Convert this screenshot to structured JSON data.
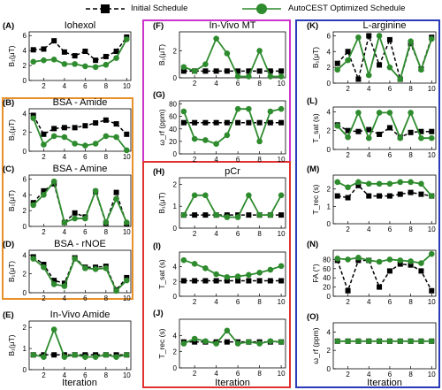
{
  "legend": {
    "initial_label": "Initial Schedule",
    "optimized_label": "AutoCEST Optimized Schedule"
  },
  "colors": {
    "initial": "#000000",
    "optimized": "#2e8b2e",
    "box_orange": "#e8902a",
    "box_magenta": "#cc33cc",
    "box_red": "#e03030",
    "box_blue": "#2a3ab8"
  },
  "x_axis_label": "Iteration",
  "x_ticks": [
    2,
    4,
    6,
    8,
    10
  ],
  "chart_data": [
    {
      "id": "A",
      "letter": "(A)",
      "title": "Iohexol",
      "ylabel": "B₁(μT)",
      "ylim": [
        0,
        6.5
      ],
      "yticks": [
        0,
        2,
        4,
        6
      ],
      "x": [
        1,
        2,
        3,
        4,
        5,
        6,
        7,
        8,
        9,
        10
      ],
      "initial": [
        4.1,
        4.2,
        5.3,
        3.8,
        3.3,
        3.9,
        2.7,
        3.2,
        3.9,
        5.8
      ],
      "optimized": [
        2.5,
        2.7,
        2.8,
        2.2,
        2.2,
        1.9,
        1.8,
        2.1,
        3.0,
        5.5
      ]
    },
    {
      "id": "B",
      "letter": "(B)",
      "title": "BSA - Amide",
      "ylabel": "B₁(μT)",
      "ylim": [
        0,
        4.5
      ],
      "yticks": [
        0,
        2,
        4
      ],
      "x": [
        1,
        2,
        3,
        4,
        5,
        6,
        7,
        8,
        9,
        10
      ],
      "initial": [
        3.8,
        1.8,
        2.4,
        2.5,
        2.5,
        2.7,
        3.0,
        3.3,
        2.9,
        1.8
      ],
      "optimized": [
        3.5,
        0.7,
        1.6,
        1.5,
        0.8,
        0.6,
        0.8,
        1.6,
        1.5,
        0.1
      ]
    },
    {
      "id": "C",
      "letter": "(C)",
      "title": "BSA - Amine",
      "ylabel": "B₁(μT)",
      "ylim": [
        0,
        6.5
      ],
      "yticks": [
        0,
        2,
        4,
        6
      ],
      "x": [
        1,
        2,
        3,
        4,
        5,
        6,
        7,
        8,
        9,
        10
      ],
      "initial": [
        3.0,
        4.5,
        5.4,
        0.5,
        1.7,
        1.2,
        4.4,
        0.4,
        4.3,
        0.3
      ],
      "optimized": [
        2.7,
        4.0,
        5.7,
        0.5,
        1.0,
        1.0,
        4.5,
        0.5,
        3.5,
        0.5
      ]
    },
    {
      "id": "D",
      "letter": "(D)",
      "title": "BSA - rNOE",
      "ylabel": "B₁(μT)",
      "ylim": [
        0,
        4.5
      ],
      "yticks": [
        0,
        2,
        4
      ],
      "x": [
        1,
        2,
        3,
        4,
        5,
        6,
        7,
        8,
        9,
        10
      ],
      "initial": [
        3.8,
        3.0,
        1.3,
        1.0,
        3.7,
        2.7,
        2.7,
        2.8,
        0.3,
        1.6
      ],
      "optimized": [
        3.6,
        2.7,
        0.9,
        0.7,
        3.6,
        2.6,
        2.5,
        2.6,
        0.2,
        1.3
      ]
    },
    {
      "id": "E",
      "letter": "(E)",
      "title": "In-Vivo Amide",
      "ylabel": "B₁(μT)",
      "ylim": [
        0,
        2.3
      ],
      "yticks": [
        0,
        1,
        2
      ],
      "x": [
        1,
        2,
        3,
        4,
        5,
        6,
        7,
        8,
        9,
        10
      ],
      "initial": [
        0.7,
        0.7,
        0.7,
        0.7,
        0.7,
        0.7,
        0.7,
        0.7,
        0.7,
        0.7
      ],
      "optimized": [
        0.7,
        0.6,
        1.9,
        0.6,
        0.7,
        0.6,
        0.6,
        0.7,
        0.6,
        0.7
      ]
    },
    {
      "id": "F",
      "letter": "(F)",
      "title": "In-Vivo MT",
      "ylabel": "B₁(μT)",
      "ylim": [
        0,
        3.4
      ],
      "yticks": [
        0,
        2
      ],
      "x": [
        1,
        2,
        3,
        4,
        5,
        6,
        7,
        8,
        9,
        10
      ],
      "initial": [
        0.5,
        0.5,
        0.5,
        0.5,
        0.5,
        0.5,
        0.5,
        0.5,
        0.5,
        0.5
      ],
      "optimized": [
        0.8,
        0.5,
        1.0,
        2.9,
        1.8,
        0.1,
        0.1,
        2.0,
        0.1,
        0.1
      ]
    },
    {
      "id": "G",
      "letter": "(G)",
      "title": "",
      "ylabel": "ω_rf (ppm)",
      "ylim": [
        0,
        85
      ],
      "yticks": [
        0,
        20,
        40,
        60,
        80
      ],
      "x": [
        1,
        2,
        3,
        4,
        5,
        6,
        7,
        8,
        9,
        10
      ],
      "initial": [
        50,
        50,
        50,
        50,
        50,
        50,
        50,
        50,
        50,
        50
      ],
      "optimized": [
        68,
        24,
        22,
        16,
        30,
        72,
        72,
        20,
        68,
        72
      ]
    },
    {
      "id": "H",
      "letter": "(H)",
      "title": "pCr",
      "ylabel": "B₁(μT)",
      "ylim": [
        0,
        2.3
      ],
      "yticks": [
        0,
        1,
        2
      ],
      "x": [
        1,
        2,
        3,
        4,
        5,
        6,
        7,
        8,
        9,
        10
      ],
      "initial": [
        0.6,
        0.6,
        0.6,
        0.6,
        0.6,
        0.6,
        0.6,
        0.6,
        0.6,
        0.6
      ],
      "optimized": [
        0.6,
        1.5,
        1.5,
        0.6,
        0.5,
        0.5,
        1.5,
        0.6,
        0.6,
        1.5
      ]
    },
    {
      "id": "I",
      "letter": "(I)",
      "title": "",
      "ylabel": "T_sat (s)",
      "ylim": [
        0,
        6
      ],
      "yticks": [
        0,
        2,
        4
      ],
      "x": [
        1,
        2,
        3,
        4,
        5,
        6,
        7,
        8,
        9,
        10
      ],
      "initial": [
        2.1,
        2.1,
        2.1,
        2.1,
        2.1,
        2.1,
        2.1,
        2.1,
        2.1,
        2.1
      ],
      "optimized": [
        4.9,
        4.4,
        3.8,
        3.0,
        2.6,
        2.7,
        2.9,
        3.2,
        3.6,
        4.1
      ]
    },
    {
      "id": "J",
      "letter": "(J)",
      "title": "",
      "ylabel": "T_rec (s)",
      "ylim": [
        0,
        6
      ],
      "yticks": [
        0,
        2,
        4
      ],
      "x": [
        1,
        2,
        3,
        4,
        5,
        6,
        7,
        8,
        9,
        10
      ],
      "initial": [
        3.2,
        3.2,
        3.2,
        3.2,
        3.2,
        3.2,
        3.2,
        3.2,
        3.2,
        3.2
      ],
      "optimized": [
        3.0,
        3.6,
        3.3,
        3.0,
        4.6,
        3.0,
        3.2,
        3.0,
        3.3,
        3.2
      ]
    },
    {
      "id": "K",
      "letter": "(K)",
      "title": "L-arginine",
      "ylabel": "B₁(μT)",
      "ylim": [
        0,
        6.5
      ],
      "yticks": [
        0,
        2,
        4,
        6
      ],
      "x": [
        1,
        2,
        3,
        4,
        5,
        6,
        7,
        8,
        9,
        10
      ],
      "initial": [
        2.5,
        4.0,
        0.5,
        6.0,
        2.3,
        5.5,
        0.5,
        5.0,
        1.8,
        5.8
      ],
      "optimized": [
        1.7,
        2.9,
        5.8,
        1.0,
        6.0,
        2.0,
        0.5,
        5.3,
        1.7,
        5.6
      ]
    },
    {
      "id": "L",
      "letter": "(L)",
      "title": "",
      "ylabel": "T_sat (s)",
      "ylim": [
        0,
        4.5
      ],
      "yticks": [
        0,
        2,
        4
      ],
      "x": [
        1,
        2,
        3,
        4,
        5,
        6,
        7,
        8,
        9,
        10
      ],
      "initial": [
        2.6,
        2.0,
        1.9,
        2.1,
        1.6,
        2.3,
        1.3,
        1.8,
        1.9,
        1.9
      ],
      "optimized": [
        2.5,
        1.3,
        3.9,
        1.2,
        3.9,
        3.9,
        1.2,
        3.9,
        1.2,
        1.2
      ]
    },
    {
      "id": "M",
      "letter": "(M)",
      "title": "",
      "ylabel": "T_rec (s)",
      "ylim": [
        0,
        2.8
      ],
      "yticks": [
        0,
        1,
        2
      ],
      "x": [
        1,
        2,
        3,
        4,
        5,
        6,
        7,
        8,
        9,
        10
      ],
      "initial": [
        1.6,
        1.5,
        2.2,
        1.6,
        1.6,
        1.6,
        1.7,
        1.8,
        1.7,
        1.6
      ],
      "optimized": [
        2.4,
        2.1,
        2.4,
        2.3,
        2.3,
        2.3,
        2.4,
        2.4,
        2.3,
        1.6
      ]
    },
    {
      "id": "N",
      "letter": "(N)",
      "title": "",
      "ylabel": "FA (°)",
      "ylim": [
        0,
        100
      ],
      "yticks": [
        0,
        20,
        40,
        60,
        80
      ],
      "x": [
        1,
        2,
        3,
        4,
        5,
        6,
        7,
        8,
        9,
        10
      ],
      "initial": [
        78,
        12,
        78,
        78,
        20,
        55,
        70,
        68,
        55,
        12
      ],
      "optimized": [
        82,
        80,
        84,
        78,
        75,
        80,
        78,
        76,
        72,
        92
      ]
    },
    {
      "id": "O",
      "letter": "(O)",
      "title": "",
      "ylabel": "ω_rf (ppm)",
      "ylim": [
        0,
        5
      ],
      "yticks": [
        0,
        2,
        4
      ],
      "x": [
        1,
        2,
        3,
        4,
        5,
        6,
        7,
        8,
        9,
        10
      ],
      "initial": [
        3.0,
        3.0,
        3.0,
        3.0,
        3.0,
        3.0,
        3.0,
        3.0,
        3.0,
        3.0
      ],
      "optimized": [
        3.0,
        3.0,
        3.0,
        3.0,
        3.0,
        3.0,
        3.0,
        3.0,
        3.0,
        3.0
      ]
    }
  ]
}
